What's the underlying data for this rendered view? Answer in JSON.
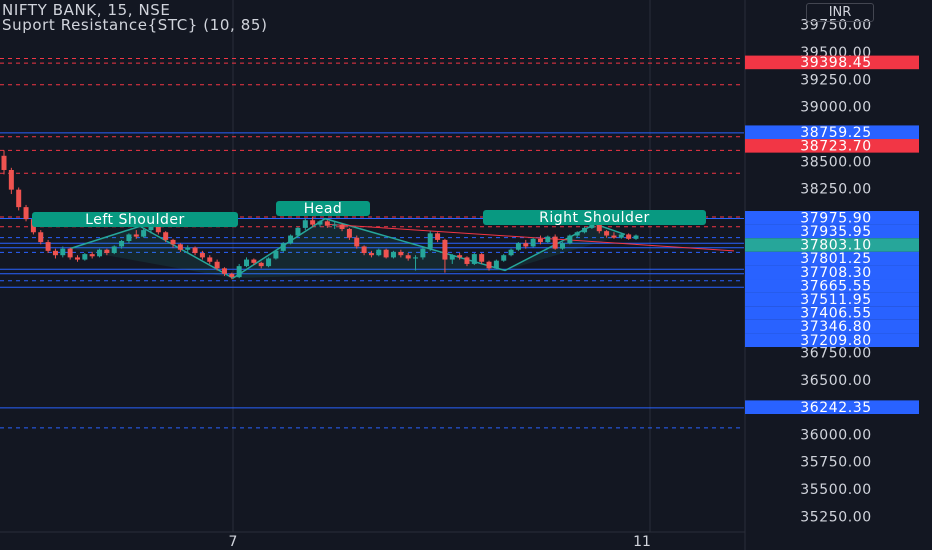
{
  "header": {
    "title": "NIFTY BANK, 15, NSE",
    "indicator": "Suport Resistance{STC} (10, 85)"
  },
  "currency_button": "INR",
  "price_axis": {
    "ticks": [
      "39750.00",
      "39500.00",
      "39250.00",
      "39000.00",
      "38750.00",
      "38500.00",
      "38250.00",
      "36750.00",
      "36500.00",
      "36000.00",
      "35750.00",
      "35500.00",
      "35250.00"
    ]
  },
  "time_axis": {
    "ticks": [
      "7",
      "11"
    ]
  },
  "pattern_labels": {
    "left_shoulder": "Left Shoulder",
    "head": "Head",
    "right_shoulder": "Right Shoulder"
  },
  "colors": {
    "background": "#131722",
    "up_candle": "#26a69a",
    "down_candle": "#ef5350",
    "support_line": "#2962ff",
    "resistance_line": "#f23645",
    "pattern_label_bg": "#089981",
    "text": "#d1d4dc"
  },
  "chart_data": {
    "type": "candlestick",
    "symbol": "NIFTY BANK",
    "interval": "15",
    "exchange": "NSE",
    "ylim": [
      35150,
      39850
    ],
    "last_price": 37803.1,
    "price_badges": [
      {
        "value": "39398.45",
        "color": "red"
      },
      {
        "value": "38759.25",
        "color": "blue"
      },
      {
        "value": "38723.70",
        "color": "red"
      },
      {
        "value": "37975.90",
        "color": "blue"
      },
      {
        "value": "37935.95",
        "color": "blue"
      },
      {
        "value": "37803.10",
        "color": "green"
      },
      {
        "value": "37801.25",
        "color": "blue"
      },
      {
        "value": "37708.30",
        "color": "blue"
      },
      {
        "value": "37665.55",
        "color": "blue"
      },
      {
        "value": "37511.95",
        "color": "blue"
      },
      {
        "value": "37406.55",
        "color": "blue"
      },
      {
        "value": "37346.80",
        "color": "blue"
      },
      {
        "value": "37209.80",
        "color": "blue"
      },
      {
        "value": "36242.35",
        "color": "blue"
      }
    ],
    "resistance_lines": [
      39440,
      39398.45,
      39200,
      38723.7,
      38600,
      38390,
      37990,
      37900
    ],
    "support_lines": [
      38759.25,
      37975.9,
      37801.25,
      37750,
      37708.3,
      37665.55,
      37511.95,
      37470,
      37406.55,
      37346.8,
      36242.35,
      36060
    ],
    "pattern_points": [
      37700,
      37905,
      37430,
      37975,
      37500,
      37925,
      37830
    ],
    "neckline": [
      37925,
      37680
    ],
    "candles": [
      [
        38550,
        38600,
        38380,
        38420
      ],
      [
        38420,
        38440,
        38200,
        38240
      ],
      [
        38240,
        38260,
        38050,
        38080
      ],
      [
        38080,
        38100,
        37950,
        37970
      ],
      [
        37970,
        37990,
        37830,
        37850
      ],
      [
        37850,
        37870,
        37740,
        37760
      ],
      [
        37760,
        37780,
        37660,
        37680
      ],
      [
        37680,
        37700,
        37610,
        37640
      ],
      [
        37640,
        37720,
        37620,
        37700
      ],
      [
        37700,
        37710,
        37600,
        37620
      ],
      [
        37620,
        37640,
        37580,
        37600
      ],
      [
        37600,
        37660,
        37590,
        37650
      ],
      [
        37650,
        37670,
        37610,
        37630
      ],
      [
        37630,
        37700,
        37620,
        37690
      ],
      [
        37690,
        37700,
        37640,
        37660
      ],
      [
        37660,
        37730,
        37650,
        37720
      ],
      [
        37720,
        37780,
        37700,
        37770
      ],
      [
        37770,
        37840,
        37750,
        37830
      ],
      [
        37830,
        37870,
        37790,
        37810
      ],
      [
        37810,
        37880,
        37800,
        37870
      ],
      [
        37870,
        37920,
        37840,
        37900
      ],
      [
        37900,
        37910,
        37830,
        37850
      ],
      [
        37850,
        37860,
        37760,
        37780
      ],
      [
        37780,
        37790,
        37710,
        37740
      ],
      [
        37740,
        37750,
        37670,
        37690
      ],
      [
        37690,
        37730,
        37660,
        37710
      ],
      [
        37710,
        37720,
        37640,
        37660
      ],
      [
        37660,
        37680,
        37600,
        37620
      ],
      [
        37620,
        37640,
        37560,
        37580
      ],
      [
        37580,
        37600,
        37500,
        37520
      ],
      [
        37520,
        37530,
        37450,
        37470
      ],
      [
        37470,
        37480,
        37420,
        37440
      ],
      [
        37440,
        37560,
        37430,
        37540
      ],
      [
        37540,
        37620,
        37530,
        37600
      ],
      [
        37600,
        37610,
        37550,
        37570
      ],
      [
        37570,
        37580,
        37520,
        37540
      ],
      [
        37540,
        37620,
        37530,
        37610
      ],
      [
        37610,
        37690,
        37600,
        37680
      ],
      [
        37680,
        37760,
        37670,
        37750
      ],
      [
        37750,
        37830,
        37740,
        37820
      ],
      [
        37820,
        37900,
        37810,
        37890
      ],
      [
        37890,
        37980,
        37870,
        37960
      ],
      [
        37960,
        37990,
        37900,
        37920
      ],
      [
        37920,
        37960,
        37900,
        37950
      ],
      [
        37950,
        37960,
        37890,
        37910
      ],
      [
        37910,
        37950,
        37880,
        37920
      ],
      [
        37920,
        37930,
        37860,
        37880
      ],
      [
        37880,
        37890,
        37780,
        37800
      ],
      [
        37800,
        37820,
        37700,
        37720
      ],
      [
        37720,
        37730,
        37640,
        37660
      ],
      [
        37660,
        37680,
        37620,
        37640
      ],
      [
        37640,
        37700,
        37630,
        37690
      ],
      [
        37690,
        37700,
        37610,
        37620
      ],
      [
        37620,
        37680,
        37610,
        37670
      ],
      [
        37670,
        37690,
        37620,
        37640
      ],
      [
        37640,
        37660,
        37590,
        37610
      ],
      [
        37610,
        37640,
        37500,
        37620
      ],
      [
        37620,
        37720,
        37600,
        37700
      ],
      [
        37700,
        37860,
        37680,
        37840
      ],
      [
        37840,
        37850,
        37760,
        37780
      ],
      [
        37780,
        37790,
        37480,
        37600
      ],
      [
        37600,
        37650,
        37560,
        37640
      ],
      [
        37640,
        37660,
        37600,
        37620
      ],
      [
        37620,
        37630,
        37540,
        37560
      ],
      [
        37560,
        37660,
        37550,
        37650
      ],
      [
        37650,
        37660,
        37560,
        37580
      ],
      [
        37580,
        37590,
        37500,
        37520
      ],
      [
        37520,
        37600,
        37510,
        37590
      ],
      [
        37590,
        37650,
        37580,
        37640
      ],
      [
        37640,
        37700,
        37630,
        37690
      ],
      [
        37690,
        37760,
        37680,
        37750
      ],
      [
        37750,
        37780,
        37700,
        37720
      ],
      [
        37720,
        37800,
        37710,
        37790
      ],
      [
        37790,
        37820,
        37740,
        37760
      ],
      [
        37760,
        37820,
        37750,
        37810
      ],
      [
        37810,
        37830,
        37690,
        37700
      ],
      [
        37700,
        37760,
        37690,
        37750
      ],
      [
        37750,
        37830,
        37740,
        37820
      ],
      [
        37820,
        37860,
        37800,
        37850
      ],
      [
        37850,
        37900,
        37840,
        37890
      ],
      [
        37890,
        37930,
        37880,
        37920
      ],
      [
        37920,
        37930,
        37840,
        37860
      ],
      [
        37860,
        37870,
        37800,
        37820
      ],
      [
        37820,
        37850,
        37790,
        37800
      ],
      [
        37800,
        37840,
        37790,
        37830
      ],
      [
        37830,
        37840,
        37780,
        37790
      ],
      [
        37790,
        37830,
        37780,
        37820
      ]
    ]
  }
}
